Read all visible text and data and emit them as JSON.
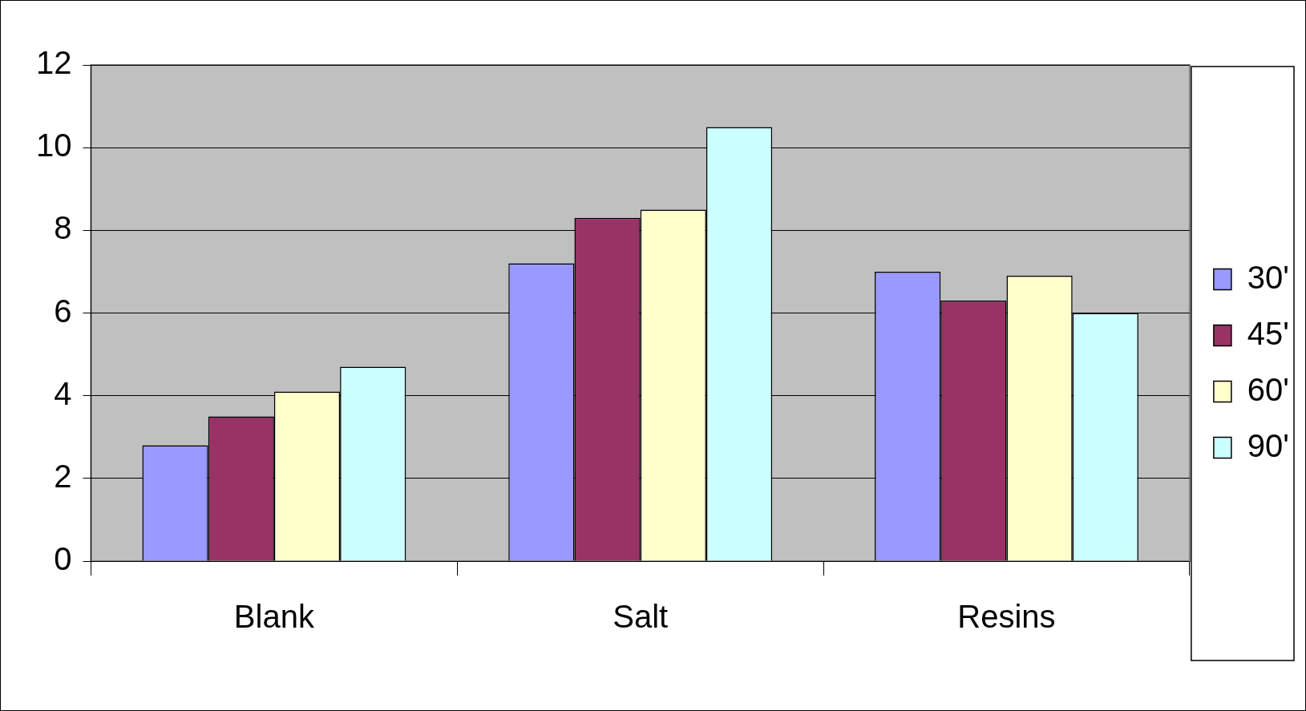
{
  "chart_data": {
    "type": "bar",
    "categories": [
      "Blank",
      "Salt",
      "Resins"
    ],
    "series": [
      {
        "name": "30'",
        "color": "#9999ff",
        "values": [
          2.8,
          7.2,
          7.0
        ]
      },
      {
        "name": "45'",
        "color": "#993366",
        "values": [
          3.5,
          8.3,
          6.3
        ]
      },
      {
        "name": "60'",
        "color": "#ffffcc",
        "values": [
          4.1,
          8.5,
          6.9
        ]
      },
      {
        "name": "90'",
        "color": "#ccffff",
        "values": [
          4.7,
          10.5,
          6.0
        ]
      }
    ],
    "ylim": [
      0,
      12
    ],
    "yticks": [
      0,
      2,
      4,
      6,
      8,
      10,
      12
    ],
    "grid": "y",
    "legend": "right"
  }
}
